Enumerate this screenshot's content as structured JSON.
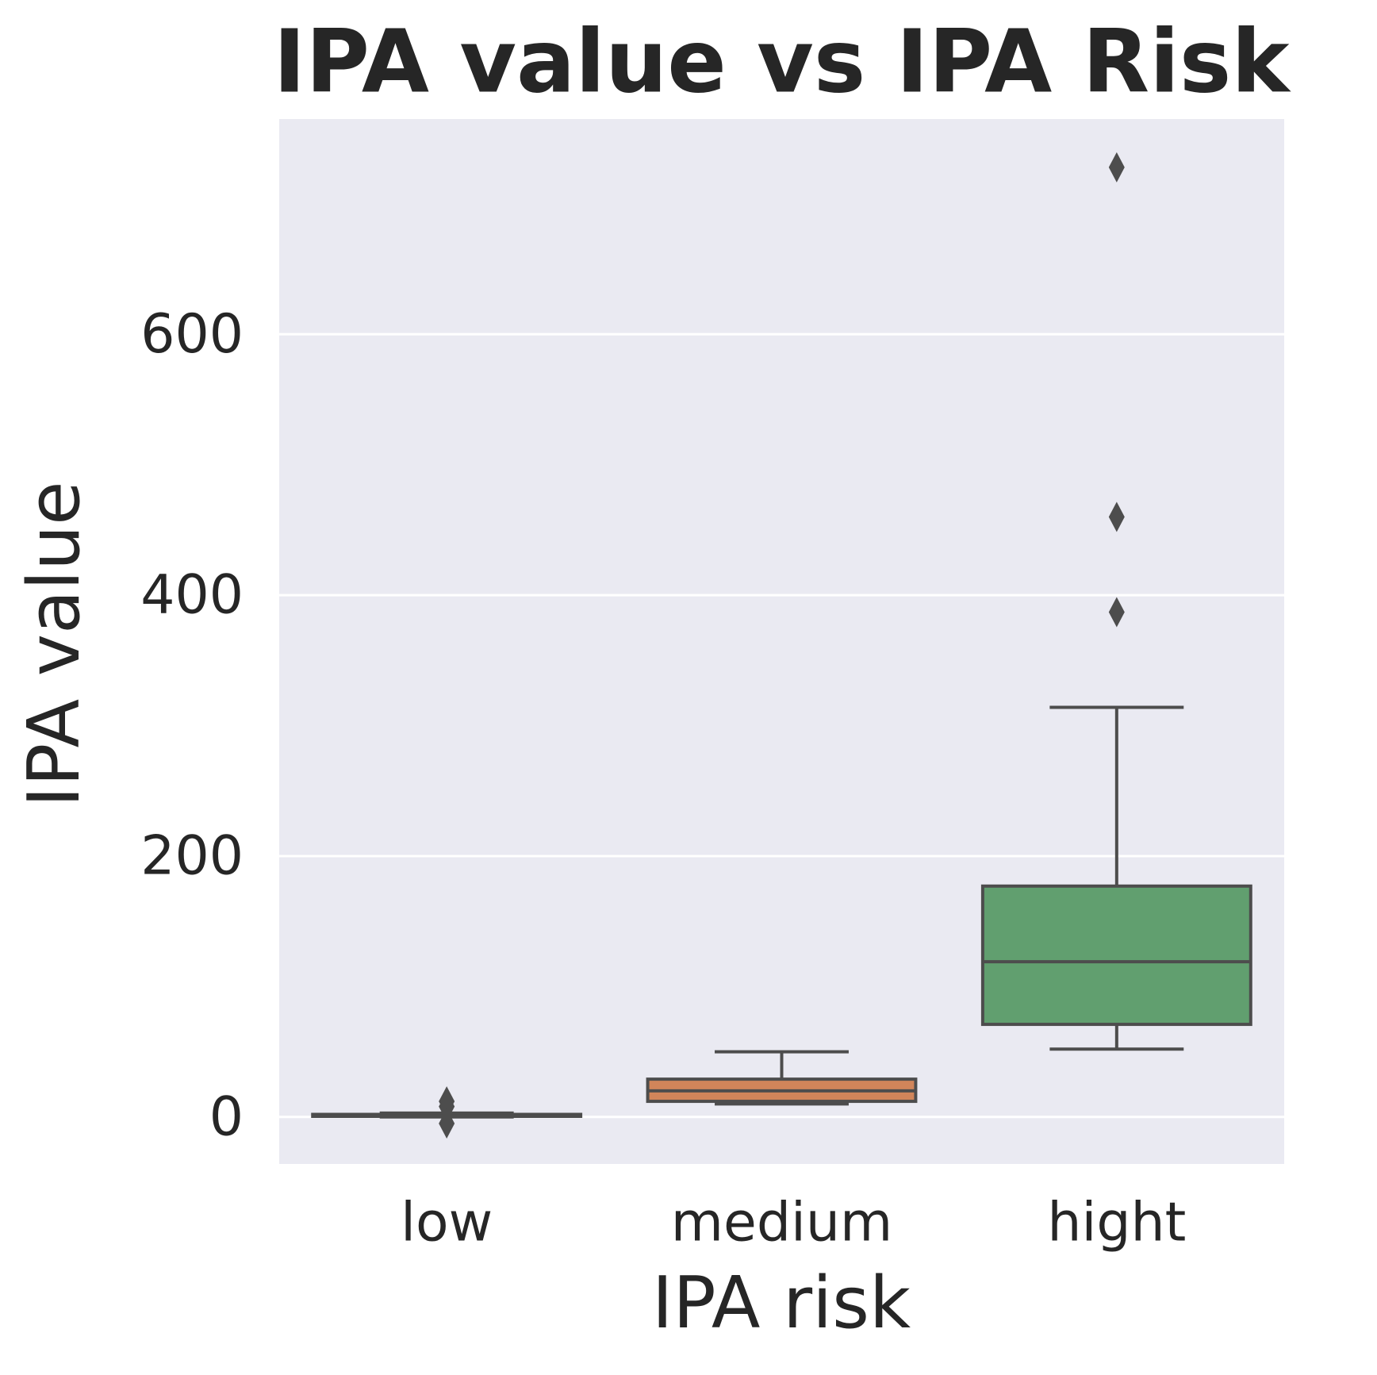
{
  "chart_data": {
    "type": "box",
    "title": "IPA value vs IPA Risk",
    "x_label": "IPA risk",
    "y_label": "IPA value",
    "categories": [
      "low",
      "medium",
      "hight"
    ],
    "boxes": [
      {
        "whislo": 0,
        "q1": 0.5,
        "med": 1,
        "q3": 2,
        "whishi": 3,
        "fliers": [
          12,
          8,
          -5
        ],
        "color": "#4c72b0"
      },
      {
        "whislo": 10,
        "q1": 12,
        "med": 20,
        "q3": 29,
        "whishi": 50,
        "fliers": [],
        "color": "#d1855a"
      },
      {
        "whislo": 52,
        "q1": 71,
        "med": 119,
        "q3": 177,
        "whishi": 314,
        "fliers": [
          728,
          460,
          387
        ],
        "color": "#619f6f"
      }
    ],
    "ylim": [
      -36,
      765
    ],
    "yticks": [
      0,
      200,
      400,
      600
    ],
    "grid": true
  }
}
